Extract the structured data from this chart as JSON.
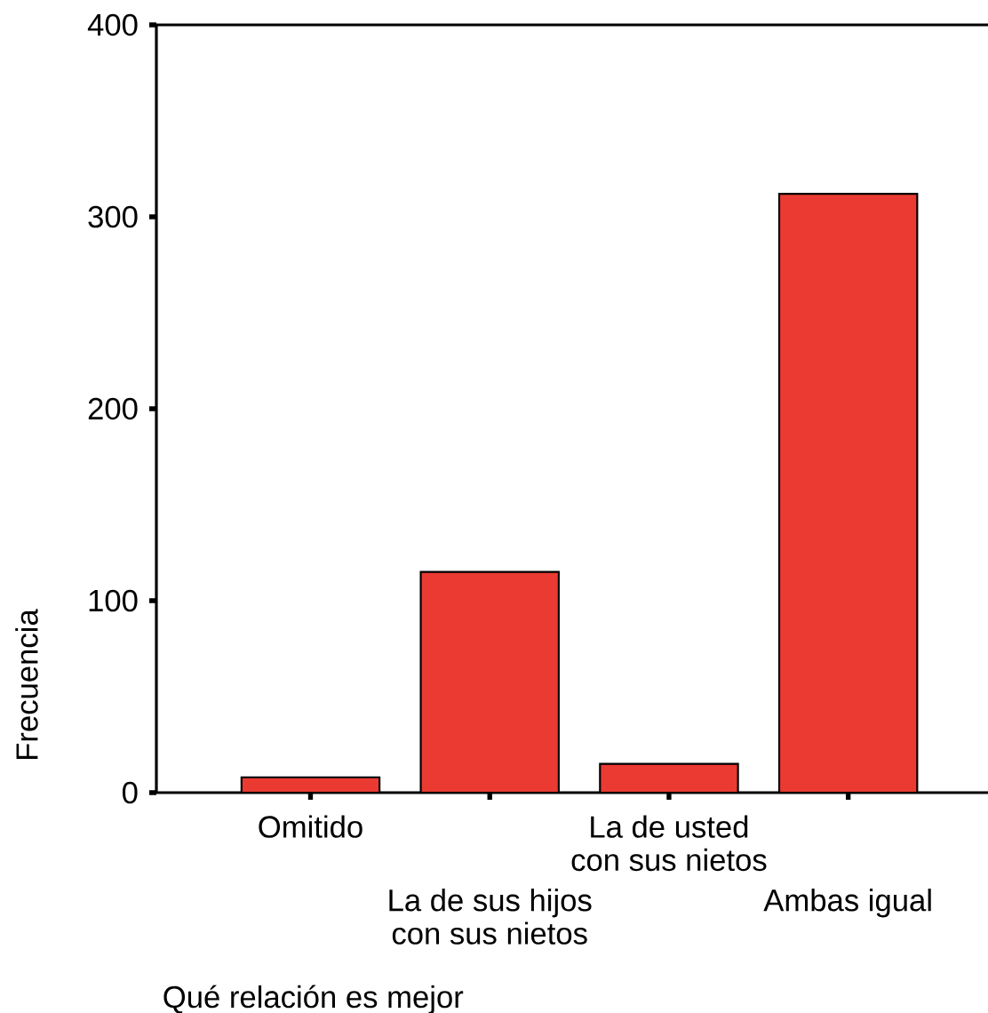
{
  "chart_data": {
    "type": "bar",
    "xlabel": "Qué relación es mejor",
    "ylabel": "Frecuencia",
    "categories": [
      "Omitido",
      "La de sus hijos con sus nietos",
      "La de usted con sus nietos",
      "Ambas igual"
    ],
    "values": [
      8,
      115,
      15,
      312
    ],
    "color": "#ea3a32",
    "ylim": [
      0,
      400
    ],
    "yticks": [
      0,
      100,
      200,
      300,
      400
    ],
    "grid": false
  }
}
